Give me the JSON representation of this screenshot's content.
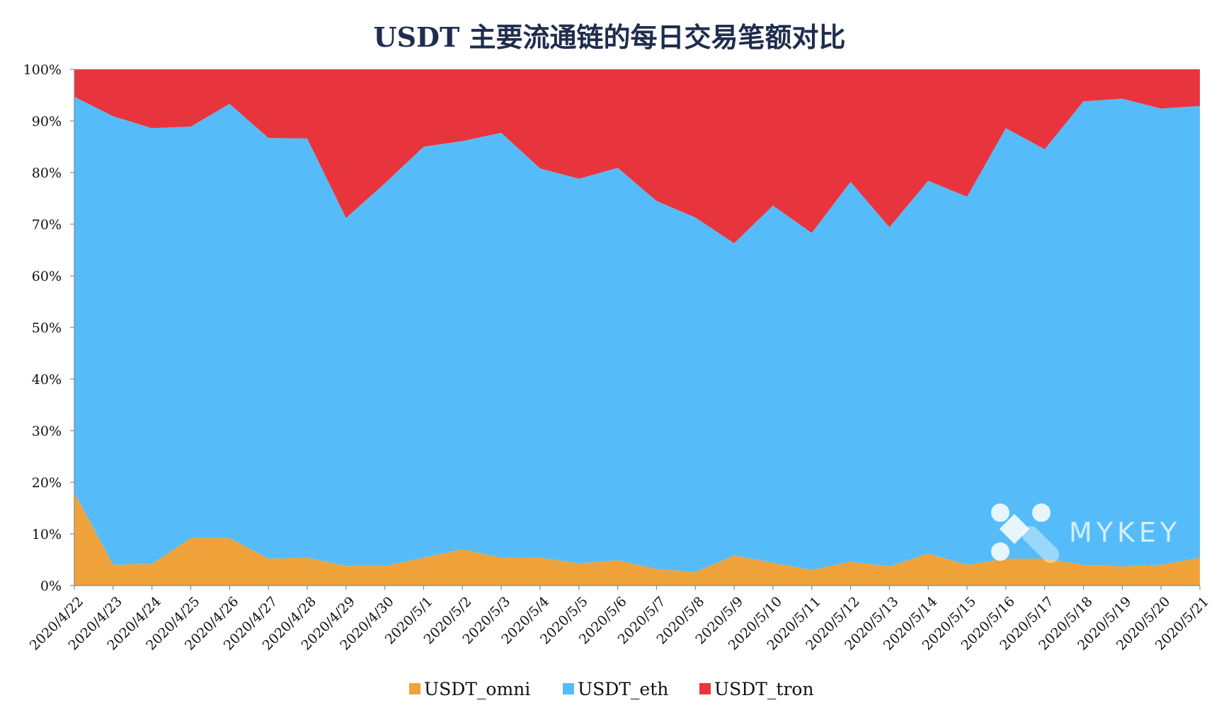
{
  "chart_data": {
    "type": "area",
    "stacked": true,
    "normalized_percent": true,
    "title": "USDT 主要流通链的每日交易笔额对比",
    "xlabel": "",
    "ylabel": "",
    "ylim": [
      0,
      100
    ],
    "yticks": [
      "0%",
      "10%",
      "20%",
      "30%",
      "40%",
      "50%",
      "60%",
      "70%",
      "80%",
      "90%",
      "100%"
    ],
    "grid": false,
    "legend_position": "bottom",
    "categories": [
      "2020/4/22",
      "2020/4/23",
      "2020/4/24",
      "2020/4/25",
      "2020/4/26",
      "2020/4/27",
      "2020/4/28",
      "2020/4/29",
      "2020/4/30",
      "2020/5/1",
      "2020/5/2",
      "2020/5/3",
      "2020/5/4",
      "2020/5/5",
      "2020/5/6",
      "2020/5/7",
      "2020/5/8",
      "2020/5/9",
      "2020/5/10",
      "2020/5/11",
      "2020/5/12",
      "2020/5/13",
      "2020/5/14",
      "2020/5/15",
      "2020/5/16",
      "2020/5/17",
      "2020/5/18",
      "2020/5/19",
      "2020/5/20",
      "2020/5/21"
    ],
    "series": [
      {
        "name": "USDT_omni",
        "color": "#F0A23A",
        "values": [
          18.0,
          4.0,
          4.2,
          9.2,
          9.2,
          5.2,
          5.4,
          3.8,
          3.8,
          5.4,
          7.0,
          5.4,
          5.4,
          4.3,
          4.9,
          3.2,
          2.6,
          5.8,
          4.4,
          3.0,
          4.6,
          3.7,
          6.2,
          4.0,
          5.2,
          5.2,
          4.0,
          3.7,
          4.0,
          5.4
        ]
      },
      {
        "name": "USDT_eth",
        "color": "#56BCF9",
        "values": [
          76.7,
          86.9,
          84.4,
          79.7,
          84.1,
          81.5,
          81.2,
          67.4,
          74.1,
          79.6,
          79.1,
          82.3,
          75.4,
          74.5,
          76.0,
          71.3,
          68.7,
          60.5,
          69.2,
          65.3,
          73.6,
          65.7,
          72.2,
          71.3,
          83.4,
          79.3,
          89.8,
          90.6,
          88.4,
          87.5
        ]
      },
      {
        "name": "USDT_tron",
        "color": "#E8353D",
        "values": [
          5.3,
          9.1,
          11.4,
          11.1,
          6.7,
          13.3,
          13.4,
          28.8,
          22.1,
          15.0,
          13.9,
          12.3,
          19.2,
          21.2,
          19.1,
          25.5,
          28.7,
          33.7,
          26.4,
          31.7,
          21.8,
          30.6,
          21.6,
          24.7,
          11.4,
          15.5,
          6.2,
          5.7,
          7.6,
          7.1
        ]
      }
    ],
    "watermark": "MYKEY"
  }
}
